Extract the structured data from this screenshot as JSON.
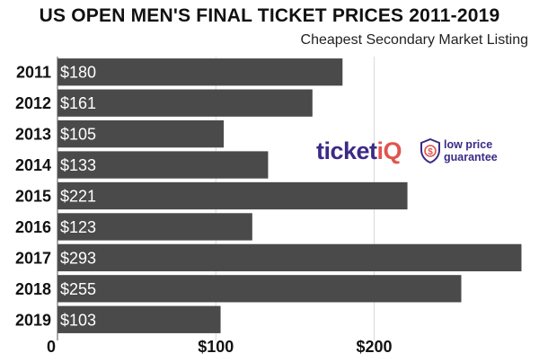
{
  "chart_data": {
    "type": "bar",
    "orientation": "horizontal",
    "title": "US OPEN MEN'S FINAL TICKET PRICES 2011-2019",
    "subtitle": "Cheapest Secondary Market Listing",
    "categories": [
      "2011",
      "2012",
      "2013",
      "2014",
      "2015",
      "2016",
      "2017",
      "2018",
      "2019"
    ],
    "values": [
      180,
      161,
      105,
      133,
      221,
      123,
      293,
      255,
      103
    ],
    "data_labels": [
      "$180",
      "$161",
      "$105",
      "$133",
      "$221",
      "$123",
      "$293",
      "$255",
      "$103"
    ],
    "x_ticks": [
      {
        "value": 0,
        "label": "0"
      },
      {
        "value": 100,
        "label": "$100"
      },
      {
        "value": 200,
        "label": "$200"
      }
    ],
    "xlim": [
      0,
      295
    ],
    "grid": true,
    "bar_color": "#4a4a4a",
    "grid_color": "#d8d8d8",
    "label_color": "#ffffff"
  },
  "branding": {
    "logo_text_1": "ticket",
    "logo_text_2": "iQ",
    "tagline_1": "low price",
    "tagline_2": "guarantee",
    "brand_purple": "#3b2a86",
    "brand_red": "#e0554f"
  }
}
